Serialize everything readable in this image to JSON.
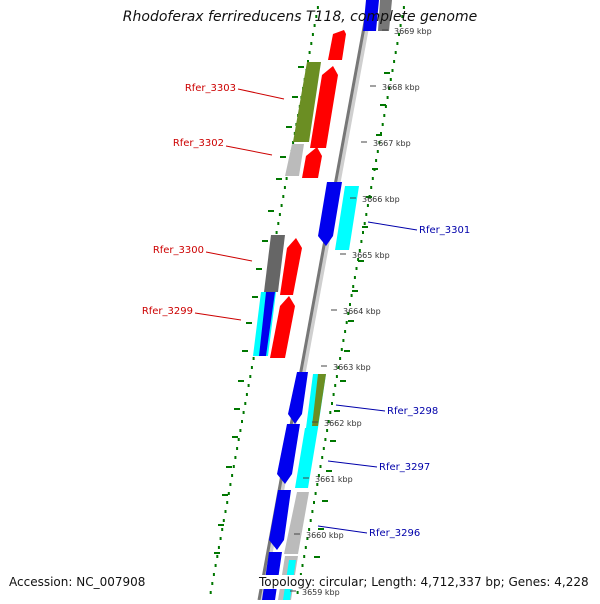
{
  "title": "Rhodoferax ferrireducens T118, complete genome",
  "footer": {
    "accession": "Accession: NC_007908",
    "topology": "Topology: circular; Length: 4,712,337 bp; Genes: 4,228"
  },
  "colors": {
    "red": "#ff0000",
    "blue": "#0000ee",
    "cyan": "#00ffff",
    "olive": "#6b8e23",
    "gray": "#666666",
    "lightgray": "#bbbbbb",
    "green": "#007700",
    "darkred": "#cc0000",
    "darkblue": "#0000aa"
  },
  "ticks": [
    {
      "label": "3669 kbp"
    },
    {
      "label": "3668 kbp"
    },
    {
      "label": "3667 kbp"
    },
    {
      "label": "3666 kbp"
    },
    {
      "label": "3665 kbp"
    },
    {
      "label": "3664 kbp"
    },
    {
      "label": "3663 kbp"
    },
    {
      "label": "3662 kbp"
    },
    {
      "label": "3661 kbp"
    },
    {
      "label": "3660 kbp"
    },
    {
      "label": "3659 kbp"
    }
  ],
  "gene_labels": [
    {
      "name": "Rfer_3303",
      "side": "left"
    },
    {
      "name": "Rfer_3302",
      "side": "left"
    },
    {
      "name": "Rfer_3301",
      "side": "right"
    },
    {
      "name": "Rfer_3300",
      "side": "left"
    },
    {
      "name": "Rfer_3299",
      "side": "left"
    },
    {
      "name": "Rfer_3298",
      "side": "right"
    },
    {
      "name": "Rfer_3297",
      "side": "right"
    },
    {
      "name": "Rfer_3296",
      "side": "right"
    }
  ]
}
